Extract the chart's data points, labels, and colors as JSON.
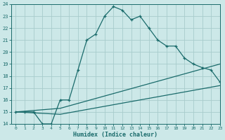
{
  "xlabel": "Humidex (Indice chaleur)",
  "x": [
    0,
    1,
    2,
    3,
    4,
    5,
    6,
    7,
    8,
    9,
    10,
    11,
    12,
    13,
    14,
    15,
    16,
    17,
    18,
    19,
    20,
    21,
    22,
    23
  ],
  "line1": [
    15,
    15,
    15,
    14,
    14,
    16,
    16,
    18.5,
    21,
    21.5,
    23,
    23.8,
    23.5,
    22.7,
    23,
    22,
    21,
    20.5,
    20.5,
    19.5,
    19,
    18.7,
    18.5,
    17.5
  ],
  "line2_x": [
    0,
    5,
    23
  ],
  "line2_y": [
    15.0,
    15.3,
    19.0
  ],
  "line3_x": [
    0,
    5,
    23
  ],
  "line3_y": [
    15.0,
    14.8,
    17.2
  ],
  "line_color": "#1a6b6b",
  "bg_color": "#cce8e8",
  "grid_color": "#a8cccc",
  "ylim": [
    14,
    24
  ],
  "xlim": [
    -0.5,
    23
  ],
  "yticks": [
    14,
    15,
    16,
    17,
    18,
    19,
    20,
    21,
    22,
    23,
    24
  ],
  "xticks": [
    0,
    1,
    2,
    3,
    4,
    5,
    6,
    7,
    8,
    9,
    10,
    11,
    12,
    13,
    14,
    15,
    16,
    17,
    18,
    19,
    20,
    21,
    22,
    23
  ]
}
